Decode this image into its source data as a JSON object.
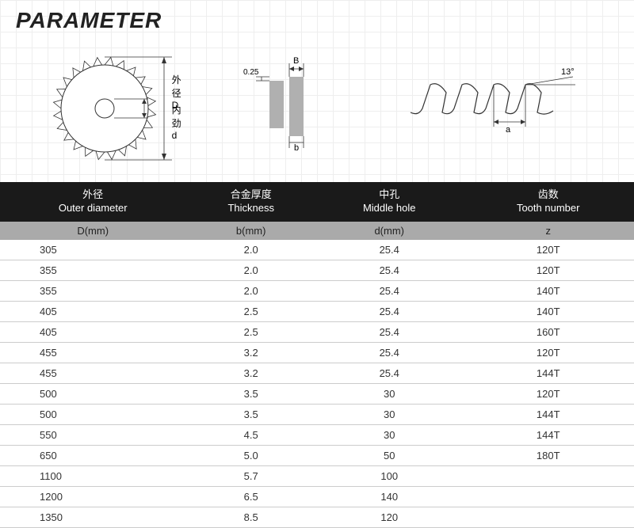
{
  "title": "PARAMETER",
  "diagrams": {
    "blade": {
      "label_outer_cn": "外径D",
      "label_inner_cn": "内劲d",
      "tooth_count": 24
    },
    "thickness": {
      "label_B": "B",
      "label_b": "b",
      "label_clearance": "0.25",
      "bar_color": "#b0b0b0"
    },
    "teeth": {
      "angle_label": "13°",
      "a_label": "a"
    }
  },
  "table": {
    "columns": [
      {
        "cn": "外径",
        "en": "Outer diameter",
        "unit": "D(mm)"
      },
      {
        "cn": "合金厚度",
        "en": "Thickness",
        "unit": "b(mm)"
      },
      {
        "cn": "中孔",
        "en": "Middle hole",
        "unit": "d(mm)"
      },
      {
        "cn": "齿数",
        "en": "Tooth number",
        "unit": "z"
      }
    ],
    "rows": [
      [
        "305",
        "2.0",
        "25.4",
        "120T"
      ],
      [
        "355",
        "2.0",
        "25.4",
        "120T"
      ],
      [
        "355",
        "2.0",
        "25.4",
        "140T"
      ],
      [
        "405",
        "2.5",
        "25.4",
        "140T"
      ],
      [
        "405",
        "2.5",
        "25.4",
        "160T"
      ],
      [
        "455",
        "3.2",
        "25.4",
        "120T"
      ],
      [
        "455",
        "3.2",
        "25.4",
        "144T"
      ],
      [
        "500",
        "3.5",
        "30",
        "120T"
      ],
      [
        "500",
        "3.5",
        "30",
        "144T"
      ],
      [
        "550",
        "4.5",
        "30",
        "144T"
      ],
      [
        "650",
        "5.0",
        "50",
        "180T"
      ],
      [
        "1100",
        "5.7",
        "100",
        ""
      ],
      [
        "1200",
        "6.5",
        "140",
        ""
      ],
      [
        "1350",
        "8.5",
        "120",
        ""
      ]
    ],
    "header_bg": "#1a1a1a",
    "subheader_bg": "#aaaaaa",
    "border_color": "#cccccc"
  }
}
